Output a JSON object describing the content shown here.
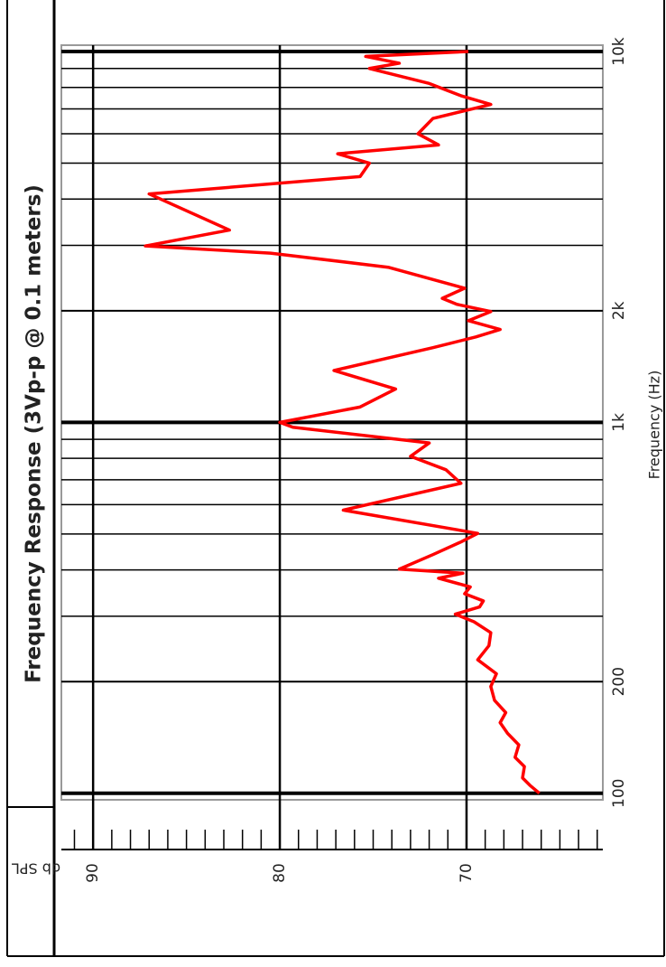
{
  "chart_data": {
    "type": "line",
    "title": "Frequency Response (3Vp-p @ 0.1 meters)",
    "xlabel": "Frequency (Hz)",
    "ylabel": "db SPL",
    "x_scale": "log",
    "xlim": [
      96,
      10400
    ],
    "ylim": [
      62.7,
      91.7
    ],
    "xticks": [
      100,
      200,
      {
        "value": 1000,
        "label": "1k"
      },
      {
        "value": 2000,
        "label": "2k"
      },
      {
        "value": 10000,
        "label": "10k"
      }
    ],
    "x_minor_grid": [
      300,
      400,
      500,
      600,
      700,
      800,
      900,
      3000,
      4000,
      5000,
      6000,
      7000,
      8000,
      9000
    ],
    "yticks": [
      70,
      80,
      90
    ],
    "y_minor_ticks": [
      63,
      64,
      65,
      66,
      67,
      68,
      69,
      71,
      72,
      73,
      74,
      75,
      76,
      77,
      78,
      79,
      81,
      82,
      83,
      84,
      85,
      86,
      87,
      88,
      89,
      91
    ],
    "grid": true,
    "series": [
      {
        "name": "SPL",
        "color": "#ff0000",
        "x": [
          100,
          105,
          110,
          118,
          125,
          135,
          145,
          155,
          165,
          178,
          194,
          210,
          229,
          250,
          271,
          290,
          304,
          318,
          330,
          345,
          360,
          380,
          392,
          402,
          440,
          476,
          502,
          580,
          685,
          745,
          810,
          880,
          970,
          1000,
          1100,
          1230,
          1380,
          1590,
          1700,
          1780,
          1880,
          1990,
          2080,
          2160,
          2300,
          2620,
          2860,
          2990,
          3300,
          4130,
          4600,
          5000,
          5300,
          5600,
          6000,
          6600,
          7200,
          7600,
          8200,
          9000,
          9300,
          9700,
          10000
        ],
        "values": [
          66.1,
          66.6,
          67.0,
          66.9,
          67.4,
          67.2,
          67.8,
          68.2,
          67.9,
          68.5,
          68.7,
          68.4,
          69.4,
          68.8,
          68.7,
          69.6,
          70.6,
          69.3,
          69.1,
          70.1,
          69.8,
          71.5,
          70.2,
          73.6,
          71.8,
          70.3,
          69.4,
          76.6,
          70.3,
          71.1,
          73.0,
          72.0,
          79.3,
          80.0,
          75.7,
          73.8,
          77.1,
          71.8,
          69.5,
          68.2,
          69.9,
          68.7,
          70.5,
          71.3,
          70.1,
          74.2,
          80.5,
          87.2,
          82.7,
          87.0,
          75.7,
          75.2,
          76.9,
          71.5,
          72.6,
          71.8,
          68.7,
          70.3,
          72.0,
          75.2,
          73.6,
          75.4,
          69.9
        ]
      }
    ]
  }
}
